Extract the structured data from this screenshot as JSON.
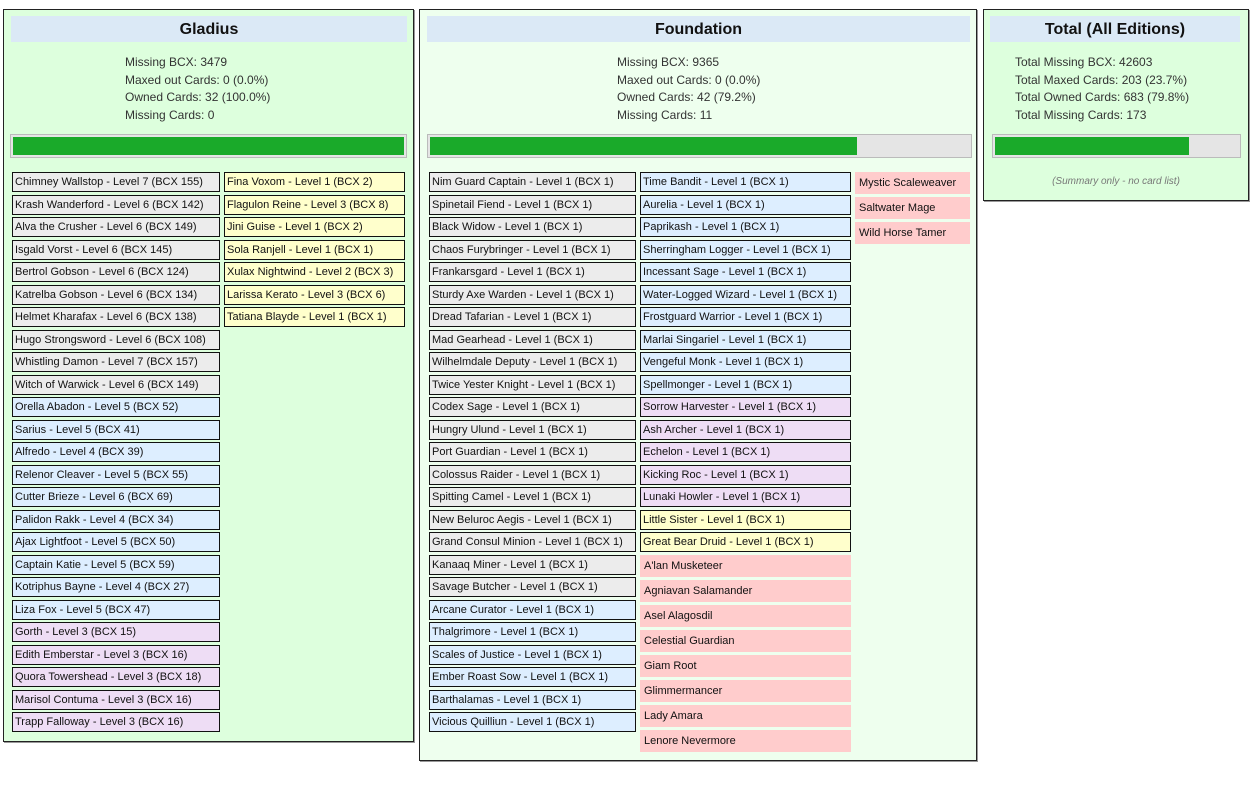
{
  "colors": {
    "cream": "#ffffcc",
    "grey": "#ececec",
    "blue": "#ddeeff",
    "purple": "#eeddf5",
    "missing": "#ffcccc",
    "progress": "#1aaa2a"
  },
  "gladius": {
    "title": "Gladius",
    "stats": [
      "Missing BCX: 3479",
      "Maxed out Cards: 0 (0.0%)",
      "Owned Cards: 32 (100.0%)",
      "Missing Cards: 0"
    ],
    "progress": 1.0,
    "col1": [
      {
        "text": "Chimney Wallstop - Level 7 (BCX 155)",
        "c": "grey"
      },
      {
        "text": "Krash Wanderford - Level 6 (BCX 142)",
        "c": "grey"
      },
      {
        "text": "Alva the Crusher - Level 6 (BCX 149)",
        "c": "grey"
      },
      {
        "text": "Isgald Vorst - Level 6 (BCX 145)",
        "c": "grey"
      },
      {
        "text": "Bertrol Gobson - Level 6 (BCX 124)",
        "c": "grey"
      },
      {
        "text": "Katrelba Gobson - Level 6 (BCX 134)",
        "c": "grey"
      },
      {
        "text": "Helmet Kharafax - Level 6 (BCX 138)",
        "c": "grey"
      },
      {
        "text": "Hugo Strongsword - Level 6 (BCX 108)",
        "c": "grey"
      },
      {
        "text": "Whistling Damon - Level 7 (BCX 157)",
        "c": "grey"
      },
      {
        "text": "Witch of Warwick - Level 6 (BCX 149)",
        "c": "grey"
      },
      {
        "text": "Orella Abadon - Level 5 (BCX 52)",
        "c": "blue"
      },
      {
        "text": "Sarius - Level 5 (BCX 41)",
        "c": "blue"
      },
      {
        "text": "Alfredo - Level 4 (BCX 39)",
        "c": "blue"
      },
      {
        "text": "Relenor Cleaver - Level 5 (BCX 55)",
        "c": "blue"
      },
      {
        "text": "Cutter Brieze - Level 6 (BCX 69)",
        "c": "blue"
      },
      {
        "text": "Palidon Rakk - Level 4 (BCX 34)",
        "c": "blue"
      },
      {
        "text": "Ajax Lightfoot - Level 5 (BCX 50)",
        "c": "blue"
      },
      {
        "text": "Captain Katie - Level 5 (BCX 59)",
        "c": "blue"
      },
      {
        "text": "Kotriphus Bayne - Level 4 (BCX 27)",
        "c": "blue"
      },
      {
        "text": "Liza Fox - Level 5 (BCX 47)",
        "c": "blue"
      },
      {
        "text": "Gorth - Level 3 (BCX 15)",
        "c": "purple"
      },
      {
        "text": "Edith Emberstar - Level 3 (BCX 16)",
        "c": "purple"
      },
      {
        "text": "Quora Towershead - Level 3 (BCX 18)",
        "c": "purple"
      },
      {
        "text": "Marisol Contuma - Level 3 (BCX 16)",
        "c": "purple"
      },
      {
        "text": "Trapp Falloway - Level 3 (BCX 16)",
        "c": "purple"
      }
    ],
    "col2": [
      {
        "text": "Fina Voxom - Level 1 (BCX 2)",
        "c": "cream"
      },
      {
        "text": "Flagulon Reine - Level 3 (BCX 8)",
        "c": "cream"
      },
      {
        "text": "Jini Guise - Level 1 (BCX 2)",
        "c": "cream"
      },
      {
        "text": "Sola Ranjell - Level 1 (BCX 1)",
        "c": "cream"
      },
      {
        "text": "Xulax Nightwind - Level 2 (BCX 3)",
        "c": "cream"
      },
      {
        "text": "Larissa Kerato - Level 3 (BCX 6)",
        "c": "cream"
      },
      {
        "text": "Tatiana Blayde - Level 1 (BCX 1)",
        "c": "cream"
      }
    ]
  },
  "foundation": {
    "title": "Foundation",
    "stats": [
      "Missing BCX: 9365",
      "Maxed out Cards: 0 (0.0%)",
      "Owned Cards: 42 (79.2%)",
      "Missing Cards: 11"
    ],
    "progress": 0.792,
    "col1": [
      {
        "text": "Nim Guard Captain - Level 1 (BCX 1)",
        "c": "grey"
      },
      {
        "text": "Spinetail Fiend - Level 1 (BCX 1)",
        "c": "grey"
      },
      {
        "text": "Black Widow - Level 1 (BCX 1)",
        "c": "grey"
      },
      {
        "text": "Chaos Furybringer - Level 1 (BCX 1)",
        "c": "grey"
      },
      {
        "text": "Frankarsgard - Level 1 (BCX 1)",
        "c": "grey"
      },
      {
        "text": "Sturdy Axe Warden - Level 1 (BCX 1)",
        "c": "grey"
      },
      {
        "text": "Dread Tafarian - Level 1 (BCX 1)",
        "c": "grey"
      },
      {
        "text": "Mad Gearhead - Level 1 (BCX 1)",
        "c": "grey"
      },
      {
        "text": "Wilhelmdale Deputy - Level 1 (BCX 1)",
        "c": "grey"
      },
      {
        "text": "Twice Yester Knight - Level 1 (BCX 1)",
        "c": "grey"
      },
      {
        "text": "Codex Sage - Level 1 (BCX 1)",
        "c": "grey"
      },
      {
        "text": "Hungry Ulund - Level 1 (BCX 1)",
        "c": "grey"
      },
      {
        "text": "Port Guardian - Level 1 (BCX 1)",
        "c": "grey"
      },
      {
        "text": "Colossus Raider - Level 1 (BCX 1)",
        "c": "grey"
      },
      {
        "text": "Spitting Camel - Level 1 (BCX 1)",
        "c": "grey"
      },
      {
        "text": "New Beluroc Aegis - Level 1 (BCX 1)",
        "c": "grey"
      },
      {
        "text": "Grand Consul Minion - Level 1 (BCX 1)",
        "c": "grey"
      },
      {
        "text": "Kanaaq Miner - Level 1 (BCX 1)",
        "c": "grey"
      },
      {
        "text": "Savage Butcher - Level 1 (BCX 1)",
        "c": "grey"
      },
      {
        "text": "Arcane Curator - Level 1 (BCX 1)",
        "c": "blue"
      },
      {
        "text": "Thalgrimore - Level 1 (BCX 1)",
        "c": "blue"
      },
      {
        "text": "Scales of Justice - Level 1 (BCX 1)",
        "c": "blue"
      },
      {
        "text": "Ember Roast Sow - Level 1 (BCX 1)",
        "c": "blue"
      },
      {
        "text": "Barthalamas - Level 1 (BCX 1)",
        "c": "blue"
      },
      {
        "text": "Vicious Quilliun - Level 1 (BCX 1)",
        "c": "blue"
      }
    ],
    "col2": [
      {
        "text": "Time Bandit - Level 1 (BCX 1)",
        "c": "blue"
      },
      {
        "text": "Aurelia - Level 1 (BCX 1)",
        "c": "blue"
      },
      {
        "text": "Paprikash - Level 1 (BCX 1)",
        "c": "blue"
      },
      {
        "text": "Sherringham Logger - Level 1 (BCX 1)",
        "c": "blue"
      },
      {
        "text": "Incessant Sage - Level 1 (BCX 1)",
        "c": "blue"
      },
      {
        "text": "Water-Logged Wizard - Level 1 (BCX 1)",
        "c": "blue"
      },
      {
        "text": "Frostguard Warrior - Level 1 (BCX 1)",
        "c": "blue"
      },
      {
        "text": "Marlai Singariel - Level 1 (BCX 1)",
        "c": "blue"
      },
      {
        "text": "Vengeful Monk - Level 1 (BCX 1)",
        "c": "blue"
      },
      {
        "text": "Spellmonger - Level 1 (BCX 1)",
        "c": "blue"
      },
      {
        "text": "Sorrow Harvester - Level 1 (BCX 1)",
        "c": "purple"
      },
      {
        "text": "Ash Archer - Level 1 (BCX 1)",
        "c": "purple"
      },
      {
        "text": "Echelon - Level 1 (BCX 1)",
        "c": "purple"
      },
      {
        "text": "Kicking Roc - Level 1 (BCX 1)",
        "c": "purple"
      },
      {
        "text": "Lunaki Howler - Level 1 (BCX 1)",
        "c": "purple"
      },
      {
        "text": "Little Sister - Level 1 (BCX 1)",
        "c": "cream"
      },
      {
        "text": "Great Bear Druid - Level 1 (BCX 1)",
        "c": "cream"
      }
    ],
    "missing_col2": [
      "A'lan Musketeer",
      "Agniavan Salamander",
      "Asel Alagosdil",
      "Celestial Guardian",
      "Giam Root",
      "Glimmermancer",
      "Lady Amara",
      "Lenore Nevermore"
    ],
    "missing_col3": [
      "Mystic Scaleweaver",
      "Saltwater Mage",
      "Wild Horse Tamer"
    ]
  },
  "total": {
    "title": "Total (All Editions)",
    "stats": [
      "Total Missing BCX: 42603",
      "Total Maxed Cards: 203 (23.7%)",
      "Total Owned Cards: 683 (79.8%)",
      "Total Missing Cards: 173"
    ],
    "progress": 0.798,
    "note": "(Summary only - no card list)"
  }
}
